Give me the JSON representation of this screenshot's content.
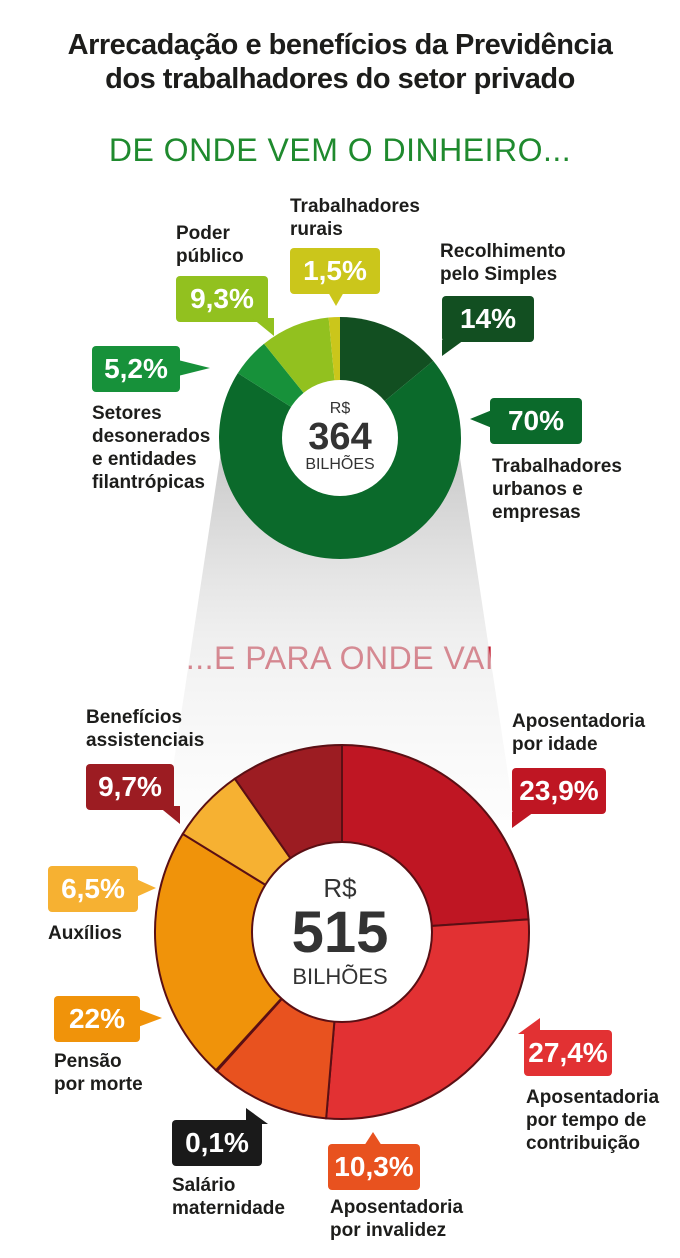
{
  "title": [
    "Arrecadação e benefícios da Previdência",
    "dos trabalhadores do setor privado"
  ],
  "section_income": "DE ONDE VEM O DINHEIRO...",
  "section_expense": "...E PARA ONDE VAI",
  "colors": {
    "income_title": "#1f8a2e",
    "expense_title": "#c0162a"
  },
  "chart_data": [
    {
      "type": "pie",
      "title": "DE ONDE VEM O DINHEIRO...",
      "center": {
        "currency": "R$",
        "value": "364",
        "unit": "BILHÕES"
      },
      "slices": [
        {
          "label": "Recolhimento\npelo Simples",
          "display": "14%",
          "value": 14,
          "color": "#124f21"
        },
        {
          "label": "Trabalhadores\nurbanos e\nempresas",
          "display": "70%",
          "value": 70,
          "color": "#0b6a2b"
        },
        {
          "label": "Setores\ndesonerados\ne entidades\nfilantrópicas",
          "display": "5,2%",
          "value": 5.2,
          "color": "#17913a"
        },
        {
          "label": "Poder\npúblico",
          "display": "9,3%",
          "value": 9.3,
          "color": "#92c11f"
        },
        {
          "label": "Trabalhadores\nrurais",
          "display": "1,5%",
          "value": 1.5,
          "color": "#cbc61b"
        }
      ]
    },
    {
      "type": "pie",
      "title": "...E PARA ONDE VAI",
      "center": {
        "currency": "R$",
        "value": "515",
        "unit": "BILHÕES"
      },
      "slices": [
        {
          "label": "Aposentadoria\npor idade",
          "display": "23,9%",
          "value": 23.9,
          "color": "#bf1623"
        },
        {
          "label": "Aposentadoria\npor tempo de\ncontribuição",
          "display": "27,4%",
          "value": 27.4,
          "color": "#e23133"
        },
        {
          "label": "Aposentadoria\npor invalidez",
          "display": "10,3%",
          "value": 10.3,
          "color": "#e8521f"
        },
        {
          "label": "Salário\nmaternidade",
          "display": "0,1%",
          "value": 0.1,
          "color": "#1a1a1a"
        },
        {
          "label": "Pensão\npor morte",
          "display": "22%",
          "value": 22,
          "color": "#f0930a"
        },
        {
          "label": "Auxílios",
          "display": "6,5%",
          "value": 6.5,
          "color": "#f6b132"
        },
        {
          "label": "Benefícios\nassistenciais",
          "display": "9,7%",
          "value": 9.7,
          "color": "#9c1c22"
        }
      ]
    }
  ]
}
